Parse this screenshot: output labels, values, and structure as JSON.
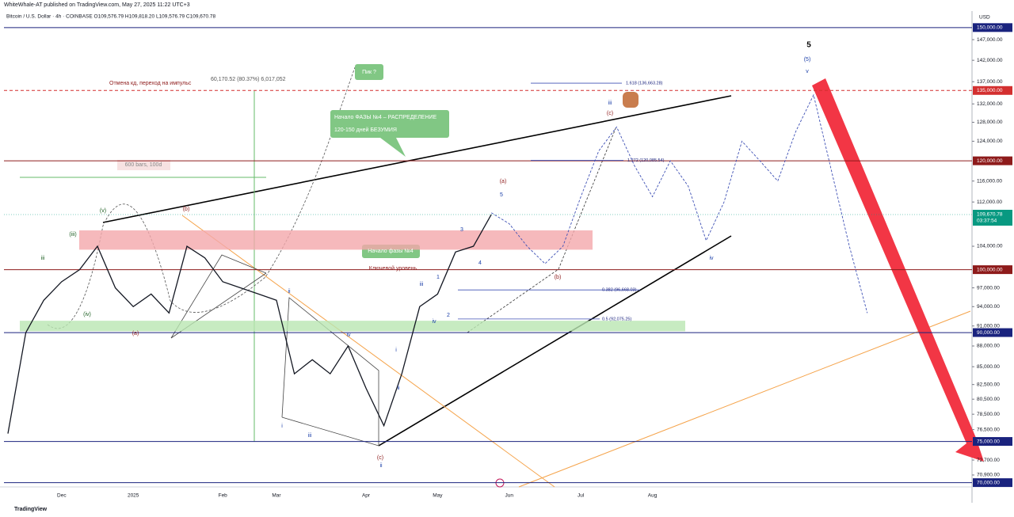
{
  "header": {
    "publisher": "WhiteWhale-AT published on TradingView.com, May 27, 2025 11:22 UTC+3",
    "symbol": "Bitcoin / U.S. Dollar · 4h · COINBASE  O109,576.79 H109,818.20 L109,576.79 C109,670.78"
  },
  "footer": "TradingView",
  "chart_data": {
    "type": "line",
    "currency": "USD",
    "log_scale": true,
    "color": "#131722",
    "projection_color": "#3f51b5",
    "categories": [
      null,
      null,
      null,
      "Dec",
      null,
      null,
      null,
      "2025",
      null,
      null,
      null,
      null,
      "Feb",
      null,
      null,
      "Mar",
      null,
      null,
      null,
      null,
      "Apr",
      null,
      null,
      null,
      "May",
      null,
      null,
      null,
      "Jun",
      null,
      null,
      null,
      "Jul",
      null,
      null,
      null,
      "Aug",
      null,
      null,
      null,
      null,
      null,
      null,
      null,
      null,
      null,
      null,
      null,
      null,
      null,
      null,
      null,
      null,
      null
    ],
    "values": [
      76000,
      90000,
      95000,
      98000,
      100000,
      104000,
      97000,
      94000,
      96000,
      93000,
      104000,
      102000,
      98000,
      97000,
      96000,
      95000,
      84000,
      86000,
      84000,
      88000,
      82000,
      77000,
      84000,
      94000,
      96000,
      103000,
      104000,
      109670.78,
      null,
      null,
      null,
      null,
      null,
      null,
      null,
      null,
      null,
      null,
      null,
      null,
      null,
      null,
      null,
      null,
      null,
      null,
      null,
      null,
      null,
      null,
      null,
      null,
      null,
      null
    ],
    "projection_values": [
      null,
      null,
      null,
      null,
      null,
      null,
      null,
      null,
      null,
      null,
      null,
      null,
      null,
      null,
      null,
      null,
      null,
      null,
      null,
      null,
      null,
      null,
      null,
      null,
      null,
      null,
      null,
      110000,
      108000,
      104000,
      101000,
      104000,
      113000,
      122000,
      127000,
      119000,
      113000,
      120000,
      115000,
      105000,
      112000,
      124000,
      120000,
      116000,
      126000,
      134000,
      118000,
      104000,
      93000,
      null,
      null,
      null,
      null,
      null
    ],
    "ylim": [
      69500,
      154200
    ],
    "yticks": [
      {
        "value": 147000,
        "label": "147,000.00"
      },
      {
        "value": 142000,
        "label": "142,000.00"
      },
      {
        "value": 137000,
        "label": "137,000.00"
      },
      {
        "value": 132000,
        "label": "132,000.00"
      },
      {
        "value": 128000,
        "label": "128,000.00"
      },
      {
        "value": 124000,
        "label": "124,000.00"
      },
      {
        "value": 116000,
        "label": "116,000.00"
      },
      {
        "value": 112000,
        "label": "112,000.00"
      },
      {
        "value": 104000,
        "label": "104,000.00"
      },
      {
        "value": 97000,
        "label": "97,000.00"
      },
      {
        "value": 94000,
        "label": "94,000.00"
      },
      {
        "value": 91000,
        "label": "91,000.00"
      },
      {
        "value": 88000,
        "label": "88,000.00"
      },
      {
        "value": 85000,
        "label": "85,000.00"
      },
      {
        "value": 82500,
        "label": "82,500.00"
      },
      {
        "value": 80500,
        "label": "80,500.00"
      },
      {
        "value": 78500,
        "label": "78,500.00"
      },
      {
        "value": 76500,
        "label": "76,500.00"
      },
      {
        "value": 72700,
        "label": "72,700.00"
      },
      {
        "value": 70900,
        "label": "70,900.00"
      }
    ],
    "levels": [
      {
        "value": 150000,
        "label": "150,000.00",
        "color": "#1a237e",
        "dashed": false
      },
      {
        "value": 135000,
        "label": "135,000.00",
        "color": "#d32f2f",
        "dashed": true
      },
      {
        "value": 120000,
        "label": "120,000.00",
        "color": "#8e1b1b",
        "dashed": false
      },
      {
        "value": 100000,
        "label": "100,000.00",
        "color": "#8e1b1b",
        "dashed": false
      },
      {
        "value": 90000,
        "label": "90,000.00",
        "color": "#1a237e",
        "dashed": false
      },
      {
        "value": 75000,
        "label": "75,000.00",
        "color": "#1a237e",
        "dashed": false
      },
      {
        "value": 70000,
        "label": "70,000.00",
        "color": "#1a237e",
        "dashed": false
      }
    ],
    "last_price": {
      "value": 109670.78,
      "label": "109,670.78",
      "countdown": "03:37:54",
      "color": "#089981"
    },
    "fib_levels": [
      {
        "value": 136663.28,
        "label": "1.618 (136,663.28)"
      },
      {
        "value": 120085.54,
        "label": "1.272 (120,085.54)"
      },
      {
        "value": 96668.03,
        "label": "0.382 (96,668.03)"
      },
      {
        "value": 92075.25,
        "label": "0.5 (92,075.25)"
      }
    ],
    "zones": [
      {
        "from": 103400,
        "to": 106800,
        "color": "#f4a7ab"
      },
      {
        "from": 90200,
        "to": 91800,
        "color": "#b9e6b2"
      }
    ],
    "annotations": [
      "Отмена кд, переход на импульс",
      "60,170.52 (80.37%) 6,017,052",
      "600 bars, 100d",
      "Пик ?",
      "Начало ФАЗЫ №4 – РАСПРЕДЕЛЕНИЕ",
      "120-150 дней БЕЗУМИЯ",
      "Начало фазы №4",
      "Ключевой уровень"
    ],
    "wave_labels": [
      "(v)",
      "(iii)",
      "iii",
      "(iv)",
      "(b)",
      "(a)",
      "ii",
      "i",
      "iii",
      "iv",
      "(c)",
      "ii",
      "i",
      "ii",
      "iii",
      "iv",
      "(a)",
      "5",
      "3",
      "4",
      "1",
      "2",
      "(b)",
      "(c)",
      "iii",
      "iv",
      "(5)",
      "v",
      "5"
    ]
  }
}
